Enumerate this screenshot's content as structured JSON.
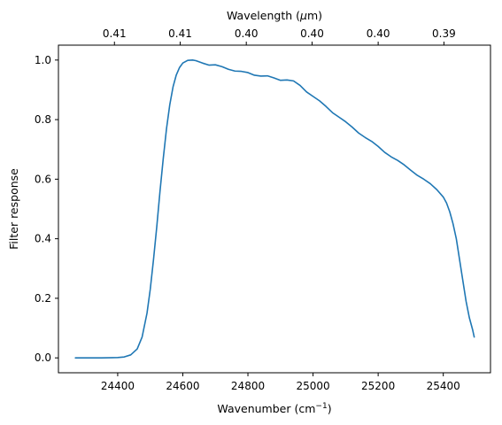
{
  "chart_data": {
    "type": "line",
    "xlabel": "Wavenumber (cm",
    "xlabel_sup": "−1",
    "xlabel_end": ")",
    "x2label": "Wavelength (",
    "x2label_mu": "μ",
    "x2label_end": "m)",
    "ylabel": "Filter response",
    "xlim": [
      24218,
      25545
    ],
    "ylim": [
      -0.05,
      1.05
    ],
    "xticks": [
      24400,
      24600,
      24800,
      25000,
      25200,
      25400
    ],
    "yticks": [
      0.0,
      0.2,
      0.4,
      0.6,
      0.8,
      1.0
    ],
    "ytick_labels": [
      "0.0",
      "0.2",
      "0.4",
      "0.6",
      "0.8",
      "1.0"
    ],
    "x2ticks": [
      24390,
      24592,
      24795,
      24997,
      25200,
      25402
    ],
    "x2tick_labels": [
      "0.41",
      "0.41",
      "0.40",
      "0.40",
      "0.40",
      "0.39"
    ],
    "line_color": "#1f77b4",
    "series": [
      {
        "x": [
          24270,
          24300,
          24350,
          24400,
          24420,
          24440,
          24460,
          24475,
          24490,
          24500,
          24510,
          24520,
          24530,
          24540,
          24550,
          24560,
          24570,
          24580,
          24590,
          24600,
          24615,
          24630,
          24640,
          24660,
          24680,
          24700,
          24720,
          24740,
          24760,
          24780,
          24800,
          24820,
          24840,
          24860,
          24880,
          24900,
          24920,
          24940,
          24960,
          24980,
          25000,
          25020,
          25040,
          25060,
          25080,
          25100,
          25120,
          25140,
          25160,
          25180,
          25200,
          25220,
          25240,
          25260,
          25280,
          25300,
          25320,
          25340,
          25360,
          25380,
          25400,
          25410,
          25420,
          25430,
          25440,
          25450,
          25460,
          25470,
          25480,
          25490,
          25495
        ],
        "y": [
          0.0,
          0.0,
          0.0,
          0.001,
          0.003,
          0.01,
          0.03,
          0.07,
          0.15,
          0.23,
          0.33,
          0.44,
          0.56,
          0.67,
          0.77,
          0.85,
          0.91,
          0.95,
          0.975,
          0.99,
          0.999,
          1.0,
          0.998,
          0.99,
          0.983,
          0.984,
          0.978,
          0.969,
          0.963,
          0.962,
          0.958,
          0.949,
          0.946,
          0.947,
          0.94,
          0.932,
          0.933,
          0.93,
          0.915,
          0.893,
          0.878,
          0.863,
          0.844,
          0.823,
          0.808,
          0.793,
          0.775,
          0.755,
          0.74,
          0.727,
          0.71,
          0.69,
          0.675,
          0.663,
          0.648,
          0.63,
          0.613,
          0.6,
          0.585,
          0.565,
          0.54,
          0.52,
          0.49,
          0.45,
          0.4,
          0.33,
          0.26,
          0.19,
          0.135,
          0.095,
          0.07
        ]
      }
    ]
  }
}
